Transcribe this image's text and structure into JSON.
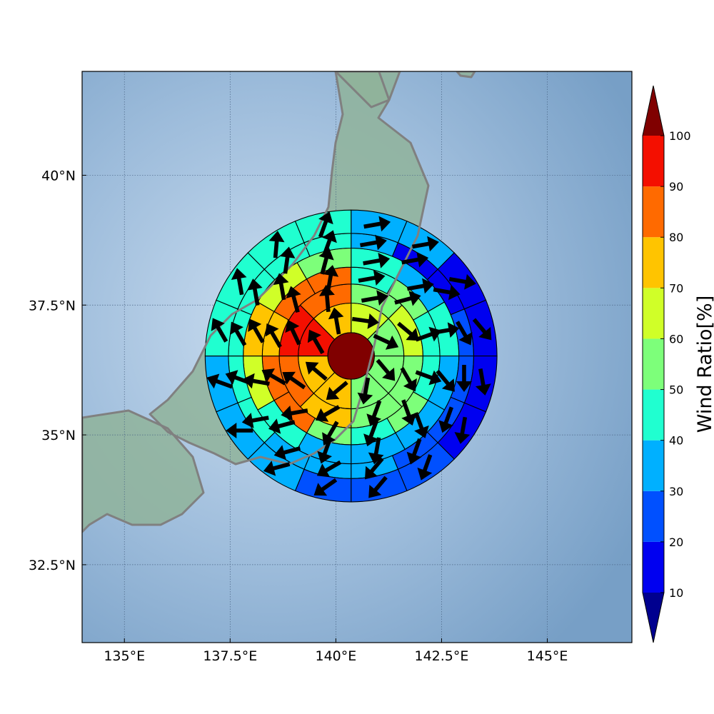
{
  "chart_data": {
    "type": "heatmap",
    "subtype": "polar-sector-wind-map",
    "title": "",
    "xlabel": "",
    "ylabel": "",
    "lon_range": [
      134.0,
      147.0
    ],
    "lat_range": [
      31.0,
      42.0
    ],
    "x_ticks": [
      {
        "value": 135.0,
        "label": "135°E"
      },
      {
        "value": 137.5,
        "label": "137.5°E"
      },
      {
        "value": 140.0,
        "label": "140°E"
      },
      {
        "value": 142.5,
        "label": "142.5°E"
      },
      {
        "value": 145.0,
        "label": "145°E"
      }
    ],
    "y_ticks": [
      {
        "value": 32.5,
        "label": "32.5°N"
      },
      {
        "value": 35.0,
        "label": "35°N"
      },
      {
        "value": 37.5,
        "label": "37.5°N"
      },
      {
        "value": 40.0,
        "label": "40°N"
      }
    ],
    "grid": true,
    "center": {
      "lon": 140.36,
      "lat": 36.52,
      "value": 100
    },
    "ring_radii_deg": [
      0.55,
      1.25,
      1.7,
      2.1,
      2.55,
      2.9,
      3.45
    ],
    "sectors_per_ring": [
      8,
      8,
      12,
      12,
      16,
      16
    ],
    "sector_start_bearing_deg": 0,
    "ring_values": [
      [
        60,
        55,
        55,
        55,
        75,
        75,
        90,
        75
      ],
      [
        50,
        60,
        50,
        50,
        75,
        85,
        90,
        85
      ],
      [
        40,
        50,
        40,
        40,
        50,
        40,
        50,
        80,
        80,
        75,
        85,
        85
      ],
      [
        40,
        30,
        40,
        30,
        30,
        30,
        30,
        45,
        60,
        70,
        65,
        55
      ],
      [
        35,
        15,
        15,
        20,
        20,
        20,
        20,
        30,
        30,
        30,
        40,
        40,
        40,
        40,
        40,
        40
      ],
      [
        30,
        30,
        10,
        10,
        10,
        15,
        20,
        20,
        20,
        30,
        30,
        30,
        45,
        45,
        45,
        45
      ]
    ],
    "ring_wind_directions_deg": [
      [
        98,
        115,
        140,
        190,
        230,
        310,
        330,
        350
      ],
      [
        80,
        130,
        150,
        200,
        240,
        305,
        335,
        355
      ],
      [
        80,
        75,
        70,
        110,
        160,
        200,
        210,
        260,
        300,
        330,
        345,
        10
      ],
      [
        80,
        80,
        80,
        140,
        160,
        190,
        200,
        255,
        280,
        330,
        350,
        15
      ],
      [
        80,
        80,
        100,
        150,
        180,
        200,
        200,
        220,
        240,
        255,
        260,
        290,
        330,
        350,
        8,
        20
      ],
      [
        80,
        80,
        100,
        140,
        170,
        190,
        200,
        220,
        235,
        255,
        270,
        290,
        330,
        350,
        5,
        20
      ]
    ],
    "colorbar": {
      "label": "Wind Ratio[%]",
      "ticks": [
        10,
        20,
        30,
        40,
        50,
        60,
        70,
        80,
        90,
        100
      ],
      "extend": "both",
      "colors": {
        "under": "#00008f",
        "10-20": "#0000f0",
        "20-30": "#0050ff",
        "30-40": "#00b0ff",
        "40-50": "#20ffd0",
        "50-60": "#7dff7a",
        "60-70": "#d0ff28",
        "70-80": "#ffc400",
        "80-90": "#ff6a00",
        "90-100": "#f40f00",
        "over": "#800000"
      }
    },
    "colors": {
      "ocean": "#7ea6cb",
      "land": "#8fb39a",
      "coastline": "#808080",
      "gridline": "#4a6585",
      "sector_edge": "#000000",
      "arrow": "#000000"
    }
  }
}
